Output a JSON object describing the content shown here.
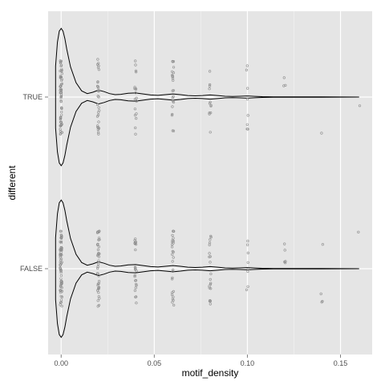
{
  "chart_data": {
    "type": "violin",
    "xlabel": "motif_density",
    "ylabel": "different",
    "categories": [
      "FALSE",
      "TRUE"
    ],
    "x_ticks": [
      0.0,
      0.05,
      0.1,
      0.15
    ],
    "x_tick_labels": [
      "0.00",
      "0.05",
      "0.10",
      "0.15"
    ],
    "xlim": [
      -0.007,
      0.167
    ],
    "grid": true,
    "legend": "none",
    "colors": {
      "panel_background": "#e5e5e5",
      "grid_major": "#ffffff",
      "grid_minor": "#f2f2f2",
      "violin_outline": "#000000",
      "points": "#8c8c8c"
    },
    "violin_width_profile": {
      "x": [
        -0.003,
        -0.002,
        -0.001,
        0.0,
        0.001,
        0.002,
        0.003,
        0.005,
        0.008,
        0.011,
        0.014,
        0.017,
        0.02,
        0.023,
        0.026,
        0.029,
        0.032,
        0.036,
        0.04,
        0.044,
        0.048,
        0.052,
        0.056,
        0.06,
        0.064,
        0.068,
        0.072,
        0.076,
        0.08,
        0.084,
        0.088,
        0.092,
        0.096,
        0.1,
        0.104,
        0.108,
        0.114,
        0.12,
        0.126,
        0.132,
        0.14,
        0.15,
        0.16
      ],
      "half_width_fraction": [
        0.45,
        0.8,
        0.96,
        1.0,
        0.96,
        0.85,
        0.7,
        0.44,
        0.21,
        0.09,
        0.05,
        0.07,
        0.1,
        0.08,
        0.05,
        0.035,
        0.04,
        0.055,
        0.06,
        0.045,
        0.03,
        0.025,
        0.035,
        0.045,
        0.035,
        0.022,
        0.018,
        0.022,
        0.03,
        0.022,
        0.012,
        0.008,
        0.012,
        0.016,
        0.01,
        0.006,
        0.004,
        0.004,
        0.003,
        0.002,
        0.002,
        0.001,
        0.0
      ]
    },
    "series": [
      {
        "category": "TRUE",
        "points": [
          {
            "x": 0.0,
            "count": 60
          },
          {
            "x": 0.02,
            "count": 30
          },
          {
            "x": 0.04,
            "count": 18
          },
          {
            "x": 0.06,
            "count": 22
          },
          {
            "x": 0.08,
            "count": 12
          },
          {
            "x": 0.1,
            "count": 8
          },
          {
            "x": 0.12,
            "count": 3
          },
          {
            "x": 0.14,
            "count": 1
          },
          {
            "x": 0.16,
            "count": 1
          }
        ]
      },
      {
        "category": "FALSE",
        "points": [
          {
            "x": 0.0,
            "count": 70
          },
          {
            "x": 0.02,
            "count": 40
          },
          {
            "x": 0.04,
            "count": 25
          },
          {
            "x": 0.06,
            "count": 28
          },
          {
            "x": 0.08,
            "count": 20
          },
          {
            "x": 0.1,
            "count": 8
          },
          {
            "x": 0.12,
            "count": 5
          },
          {
            "x": 0.14,
            "count": 4
          },
          {
            "x": 0.16,
            "count": 1
          }
        ]
      }
    ]
  }
}
